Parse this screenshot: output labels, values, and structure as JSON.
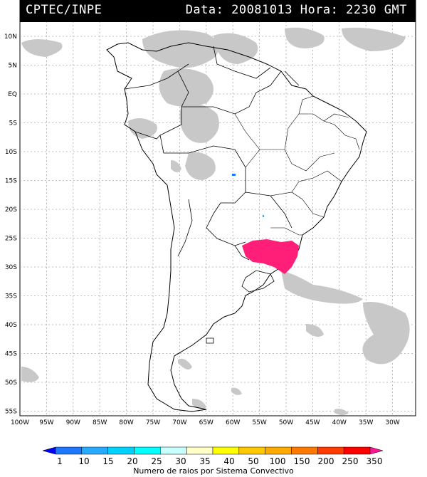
{
  "header": {
    "org": "CPTEC/INPE",
    "datetime": "Data: 20081013 Hora: 2230 GMT"
  },
  "axes": {
    "lat_labels": [
      "10N",
      "5N",
      "EQ",
      "5S",
      "10S",
      "15S",
      "20S",
      "25S",
      "30S",
      "35S",
      "40S",
      "45S",
      "50S",
      "55S"
    ],
    "lon_labels": [
      "100W",
      "95W",
      "90W",
      "85W",
      "80W",
      "75W",
      "70W",
      "65W",
      "60W",
      "55W",
      "50W",
      "45W",
      "40W",
      "35W",
      "30W"
    ]
  },
  "colorbar": {
    "labels": [
      "1",
      "10",
      "15",
      "20",
      "25",
      "30",
      "35",
      "40",
      "50",
      "100",
      "150",
      "200",
      "250",
      "350"
    ],
    "colors": [
      "#0000ff",
      "#1e78ff",
      "#28aaff",
      "#00d2ff",
      "#00ffff",
      "#c8ffff",
      "#ffffc8",
      "#ffff00",
      "#ffc800",
      "#ffaa00",
      "#ff7800",
      "#ff3c00",
      "#ff0000",
      "#ff1493"
    ],
    "title": "Numero de raios por Sistema Convectivo"
  },
  "map": {
    "cloud_color": "#c8c8c8",
    "lightning_color": "#ff1e78",
    "grid_line_color": "#aaaaaa"
  }
}
